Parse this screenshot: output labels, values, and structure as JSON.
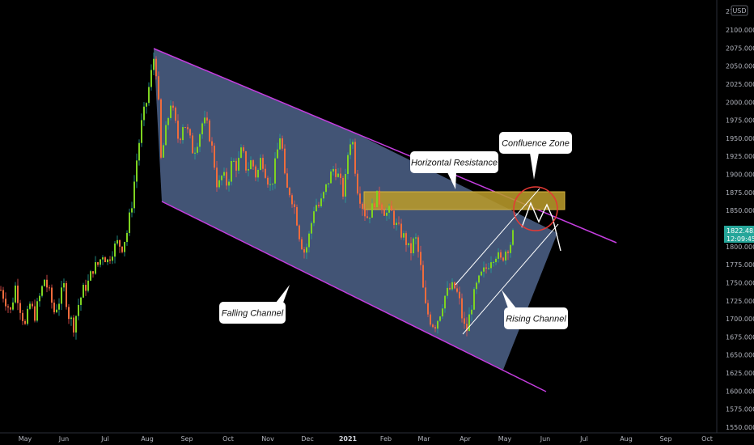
{
  "chart_data": {
    "type": "candlestick",
    "currency": "USD",
    "y_ticks": [
      "2100.000",
      "2075.000",
      "2050.000",
      "2025.000",
      "2000.000",
      "1975.000",
      "1950.000",
      "1925.000",
      "1900.000",
      "1875.000",
      "1850.000",
      "1825.000",
      "1800.000",
      "1775.000",
      "1750.000",
      "1725.000",
      "1700.000",
      "1675.000",
      "1650.000",
      "1625.000",
      "1600.000",
      "1575.000",
      "1550.000"
    ],
    "y_top_partial": "21",
    "x_ticks": [
      "May",
      "Jun",
      "Jul",
      "Aug",
      "Sep",
      "Oct",
      "Nov",
      "Dec",
      "2021",
      "Feb",
      "Mar",
      "Apr",
      "May",
      "Jun",
      "Jul",
      "Aug",
      "Sep",
      "Oct"
    ],
    "x_bold": "2021",
    "last_price": "1822.485",
    "countdown": "12:09:45",
    "ylim": [
      1550,
      2110
    ],
    "annotations": {
      "confluence_zone": "Confluence Zone",
      "horizontal_resistance": "Horizontal Resistance",
      "falling_channel": "Falling Channel",
      "rising_channel": "Rising Channel"
    },
    "path": [
      [
        0,
        1740
      ],
      [
        6,
        1725
      ],
      [
        12,
        1710
      ],
      [
        18,
        1745
      ],
      [
        24,
        1715
      ],
      [
        30,
        1690
      ],
      [
        36,
        1720
      ],
      [
        42,
        1705
      ],
      [
        48,
        1730
      ],
      [
        54,
        1755
      ],
      [
        60,
        1735
      ],
      [
        66,
        1710
      ],
      [
        72,
        1725
      ],
      [
        78,
        1745
      ],
      [
        84,
        1705
      ],
      [
        90,
        1690
      ],
      [
        96,
        1720
      ],
      [
        102,
        1740
      ],
      [
        108,
        1750
      ],
      [
        114,
        1770
      ],
      [
        120,
        1775
      ],
      [
        126,
        1790
      ],
      [
        132,
        1780
      ],
      [
        138,
        1795
      ],
      [
        144,
        1805
      ],
      [
        150,
        1800
      ],
      [
        156,
        1820
      ],
      [
        162,
        1860
      ],
      [
        168,
        1920
      ],
      [
        174,
        1970
      ],
      [
        180,
        2000
      ],
      [
        186,
        2040
      ],
      [
        190,
        2068
      ],
      [
        194,
        2020
      ],
      [
        198,
        1920
      ],
      [
        204,
        1960
      ],
      [
        210,
        2000
      ],
      [
        214,
        1980
      ],
      [
        220,
        1945
      ],
      [
        226,
        1975
      ],
      [
        232,
        1955
      ],
      [
        238,
        1930
      ],
      [
        244,
        1950
      ],
      [
        250,
        1975
      ],
      [
        256,
        1965
      ],
      [
        262,
        1930
      ],
      [
        268,
        1880
      ],
      [
        274,
        1900
      ],
      [
        280,
        1885
      ],
      [
        286,
        1920
      ],
      [
        292,
        1910
      ],
      [
        298,
        1935
      ],
      [
        304,
        1905
      ],
      [
        310,
        1920
      ],
      [
        316,
        1895
      ],
      [
        322,
        1925
      ],
      [
        328,
        1900
      ],
      [
        334,
        1880
      ],
      [
        340,
        1920
      ],
      [
        346,
        1960
      ],
      [
        352,
        1880
      ],
      [
        358,
        1875
      ],
      [
        364,
        1850
      ],
      [
        370,
        1810
      ],
      [
        376,
        1790
      ],
      [
        382,
        1820
      ],
      [
        388,
        1860
      ],
      [
        394,
        1855
      ],
      [
        400,
        1875
      ],
      [
        406,
        1895
      ],
      [
        412,
        1910
      ],
      [
        418,
        1895
      ],
      [
        424,
        1870
      ],
      [
        430,
        1940
      ],
      [
        434,
        1955
      ],
      [
        440,
        1885
      ],
      [
        446,
        1860
      ],
      [
        452,
        1840
      ],
      [
        458,
        1850
      ],
      [
        464,
        1870
      ],
      [
        470,
        1860
      ],
      [
        476,
        1845
      ],
      [
        482,
        1850
      ],
      [
        488,
        1830
      ],
      [
        494,
        1820
      ],
      [
        500,
        1810
      ],
      [
        506,
        1790
      ],
      [
        512,
        1815
      ],
      [
        518,
        1780
      ],
      [
        524,
        1720
      ],
      [
        530,
        1700
      ],
      [
        536,
        1690
      ],
      [
        542,
        1705
      ],
      [
        548,
        1730
      ],
      [
        554,
        1740
      ],
      [
        560,
        1745
      ],
      [
        566,
        1730
      ],
      [
        572,
        1690
      ],
      [
        576,
        1685
      ],
      [
        582,
        1720
      ],
      [
        588,
        1745
      ],
      [
        594,
        1760
      ],
      [
        600,
        1770
      ],
      [
        606,
        1785
      ],
      [
        612,
        1790
      ],
      [
        618,
        1780
      ],
      [
        624,
        1795
      ],
      [
        630,
        1805
      ],
      [
        634,
        1820
      ]
    ]
  }
}
